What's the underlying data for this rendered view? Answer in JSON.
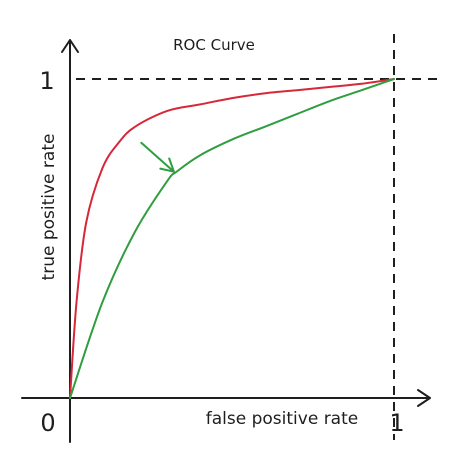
{
  "chart_data": {
    "type": "line",
    "title": "ROC Curve",
    "xlabel": "false positive rate",
    "ylabel": "true positive rate",
    "xlim": [
      0,
      1
    ],
    "ylim": [
      0,
      1
    ],
    "x_ticks": [
      {
        "value": 0,
        "label": "0"
      },
      {
        "value": 1,
        "label": "1"
      }
    ],
    "y_ticks": [
      {
        "value": 1,
        "label": "1"
      }
    ],
    "grid": false,
    "reference_lines": [
      {
        "orientation": "horizontal",
        "value": 1,
        "style": "dashed"
      },
      {
        "orientation": "vertical",
        "value": 1,
        "style": "dashed"
      }
    ],
    "series": [
      {
        "color": "#d62839",
        "x": [
          0,
          0.02,
          0.05,
          0.1,
          0.15,
          0.2,
          0.3,
          0.4,
          0.5,
          0.6,
          0.7,
          0.8,
          0.9,
          1.0
        ],
        "y": [
          0,
          0.3,
          0.55,
          0.72,
          0.8,
          0.85,
          0.9,
          0.92,
          0.94,
          0.955,
          0.965,
          0.975,
          0.985,
          1.0
        ]
      },
      {
        "color": "#2e9e3e",
        "x": [
          0,
          0.1,
          0.2,
          0.3,
          0.33,
          0.4,
          0.5,
          0.6,
          0.7,
          0.8,
          0.9,
          1.0
        ],
        "y": [
          0,
          0.3,
          0.52,
          0.68,
          0.71,
          0.76,
          0.81,
          0.85,
          0.89,
          0.93,
          0.965,
          1.0
        ]
      }
    ],
    "annotations": [
      {
        "type": "arrow",
        "color": "#2e9e3e",
        "from": [
          0.22,
          0.8
        ],
        "to": [
          0.33,
          0.7
        ]
      }
    ]
  }
}
